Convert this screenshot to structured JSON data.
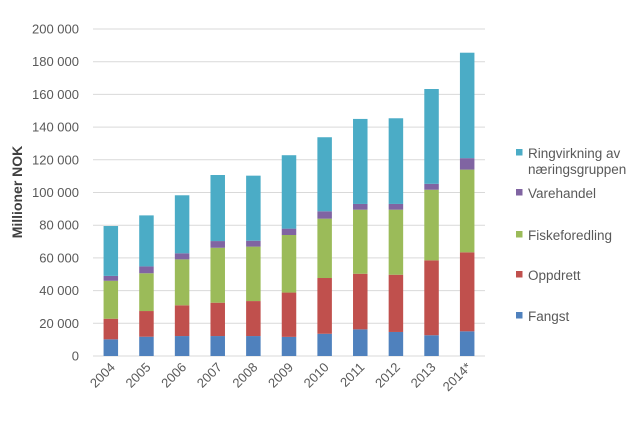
{
  "chart_data": {
    "type": "bar",
    "stacked": true,
    "title": "",
    "xlabel": "",
    "ylabel": "Millioner NOK",
    "ylim": [
      0,
      200000
    ],
    "yticks": [
      0,
      20000,
      40000,
      60000,
      80000,
      100000,
      120000,
      140000,
      160000,
      180000,
      200000
    ],
    "ytick_labels": [
      "0",
      "20 000",
      "40 000",
      "60 000",
      "80 000",
      "100 000",
      "120 000",
      "140 000",
      "160 000",
      "180 000",
      "200 000"
    ],
    "grid": true,
    "legend_position": "right",
    "categories": [
      "2004",
      "2005",
      "2006",
      "2007",
      "2008",
      "2009",
      "2010",
      "2011",
      "2012",
      "2013",
      "2014*"
    ],
    "series": [
      {
        "name": "Fangst",
        "color": "#4F81BD",
        "values": [
          10200,
          11800,
          12200,
          12200,
          12200,
          11700,
          13600,
          16300,
          14700,
          12700,
          15100
        ]
      },
      {
        "name": "Oppdrett",
        "color": "#C0504D",
        "values": [
          12600,
          15700,
          18800,
          20400,
          21400,
          27100,
          34100,
          34000,
          35000,
          45800,
          48300
        ]
      },
      {
        "name": "Fiskeforedling",
        "color": "#9BBB59",
        "values": [
          23200,
          23100,
          28100,
          33600,
          33300,
          35200,
          36300,
          39200,
          39800,
          43200,
          50600
        ]
      },
      {
        "name": "Varehandel",
        "color": "#8064A2",
        "values": [
          3000,
          4200,
          3700,
          4100,
          3600,
          3900,
          4500,
          3500,
          3500,
          3600,
          7000
        ]
      },
      {
        "name": "Ringvirkning av næringsgruppen",
        "color": "#4BACC6",
        "values": [
          30500,
          31200,
          35500,
          40400,
          39800,
          44900,
          45300,
          52000,
          52400,
          58000,
          64500
        ]
      }
    ],
    "legend": [
      {
        "lines": [
          "Ringvirkning av",
          "næringsgruppen"
        ],
        "color": "#4BACC6"
      },
      {
        "lines": [
          "Varehandel"
        ],
        "color": "#8064A2"
      },
      {
        "lines": [
          "Fiskeforedling"
        ],
        "color": "#9BBB59"
      },
      {
        "lines": [
          "Oppdrett"
        ],
        "color": "#C0504D"
      },
      {
        "lines": [
          "Fangst"
        ],
        "color": "#4F81BD"
      }
    ]
  }
}
